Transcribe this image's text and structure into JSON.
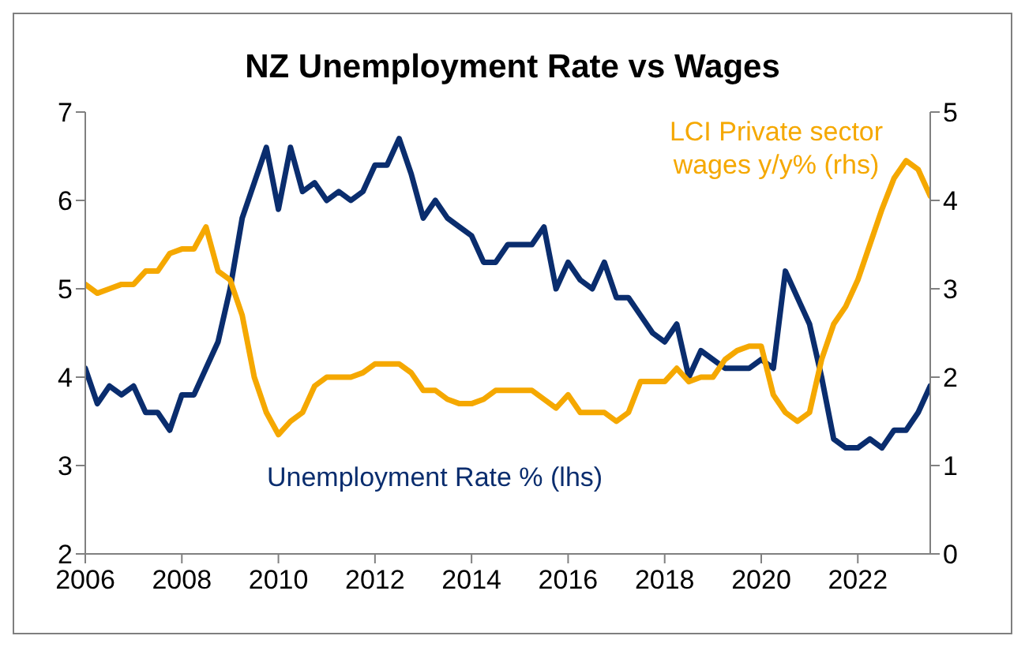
{
  "chart_data": {
    "type": "line",
    "title": "NZ Unemployment Rate vs Wages",
    "x": [
      2006,
      2006.25,
      2006.5,
      2006.75,
      2007,
      2007.25,
      2007.5,
      2007.75,
      2008,
      2008.25,
      2008.5,
      2008.75,
      2009,
      2009.25,
      2009.5,
      2009.75,
      2010,
      2010.25,
      2010.5,
      2010.75,
      2011,
      2011.25,
      2011.5,
      2011.75,
      2012,
      2012.25,
      2012.5,
      2012.75,
      2013,
      2013.25,
      2013.5,
      2013.75,
      2014,
      2014.25,
      2014.5,
      2014.75,
      2015,
      2015.25,
      2015.5,
      2015.75,
      2016,
      2016.25,
      2016.5,
      2016.75,
      2017,
      2017.25,
      2017.5,
      2017.75,
      2018,
      2018.25,
      2018.5,
      2018.75,
      2019,
      2019.25,
      2019.5,
      2019.75,
      2020,
      2020.25,
      2020.5,
      2020.75,
      2021,
      2021.25,
      2021.5,
      2021.75,
      2022,
      2022.25,
      2022.5,
      2022.75,
      2023,
      2023.25,
      2023.5
    ],
    "series": [
      {
        "name": "Unemployment Rate % (lhs)",
        "color": "#0a2d6e",
        "values": [
          4.1,
          3.7,
          3.9,
          3.8,
          3.9,
          3.6,
          3.6,
          3.4,
          3.8,
          3.8,
          4.1,
          4.4,
          5.0,
          5.8,
          6.2,
          6.6,
          5.9,
          6.6,
          6.1,
          6.2,
          6.0,
          6.1,
          6.0,
          6.1,
          6.4,
          6.4,
          6.7,
          6.3,
          5.8,
          6.0,
          5.8,
          5.7,
          5.6,
          5.3,
          5.3,
          5.5,
          5.5,
          5.5,
          5.7,
          5.0,
          5.3,
          5.1,
          5.0,
          5.3,
          4.9,
          4.9,
          4.7,
          4.5,
          4.4,
          4.6,
          4.0,
          4.3,
          4.2,
          4.1,
          4.1,
          4.1,
          4.2,
          4.1,
          5.2,
          4.9,
          4.6,
          4.0,
          3.3,
          3.2,
          3.2,
          3.3,
          3.2,
          3.4,
          3.4,
          3.6,
          3.9
        ]
      },
      {
        "name": "LCI Private sector wages y/y% (rhs)",
        "color": "#f5a800",
        "axis": "y2",
        "values": [
          3.05,
          2.95,
          3.0,
          3.05,
          3.05,
          3.2,
          3.2,
          3.4,
          3.45,
          3.45,
          3.7,
          3.2,
          3.1,
          2.7,
          2.0,
          1.6,
          1.35,
          1.5,
          1.6,
          1.9,
          2.0,
          2.0,
          2.0,
          2.05,
          2.15,
          2.15,
          2.15,
          2.05,
          1.85,
          1.85,
          1.75,
          1.7,
          1.7,
          1.75,
          1.85,
          1.85,
          1.85,
          1.85,
          1.75,
          1.65,
          1.8,
          1.6,
          1.6,
          1.6,
          1.5,
          1.6,
          1.95,
          1.95,
          1.95,
          2.1,
          1.95,
          2.0,
          2.0,
          2.2,
          2.3,
          2.35,
          2.35,
          1.8,
          1.6,
          1.5,
          1.6,
          2.2,
          2.6,
          2.8,
          3.1,
          3.5,
          3.9,
          4.25,
          4.45,
          4.35,
          4.05
        ]
      }
    ],
    "xlim": [
      2006,
      2023.5
    ],
    "xticks": [
      2006,
      2008,
      2010,
      2012,
      2014,
      2016,
      2018,
      2020,
      2022
    ],
    "ylim": [
      2,
      7
    ],
    "yticks": [
      2,
      3,
      4,
      5,
      6,
      7
    ],
    "y2lim": [
      0,
      5
    ],
    "y2ticks": [
      0,
      1,
      2,
      3,
      4,
      5
    ],
    "grid": false,
    "legend": false,
    "marker": "none",
    "line_style": "solid"
  }
}
